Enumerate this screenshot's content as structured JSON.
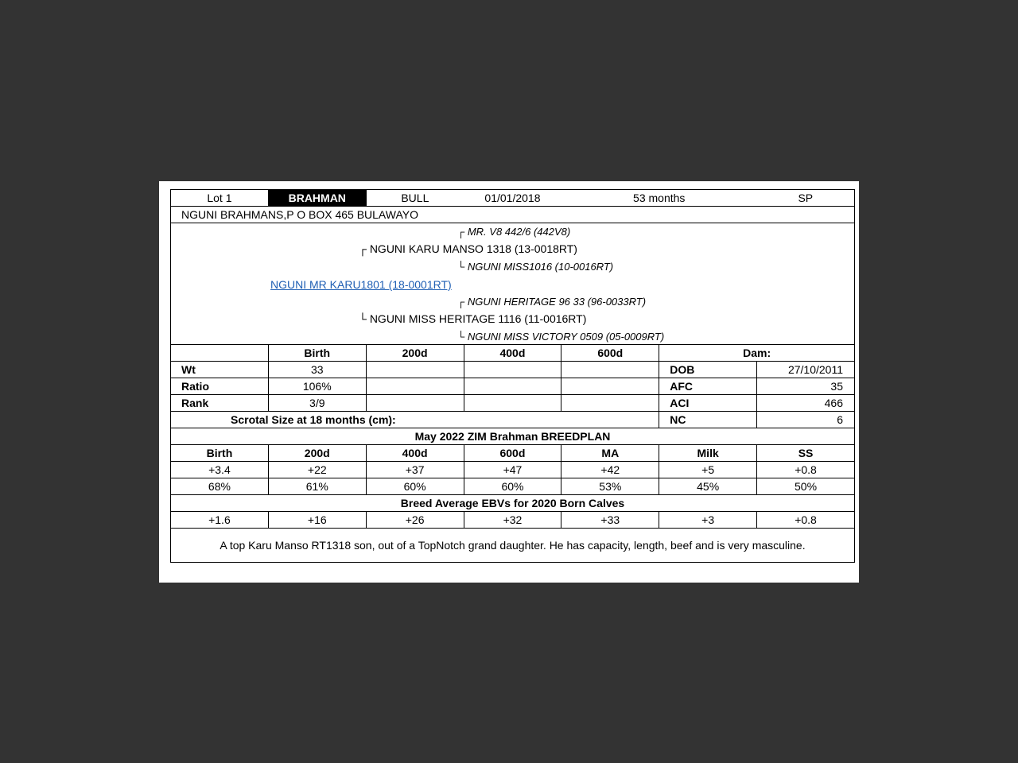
{
  "header": {
    "lot": "Lot 1",
    "breed": "BRAHMAN",
    "sex": "BULL",
    "dob": "01/01/2018",
    "age": "53 months",
    "status": "SP"
  },
  "breeder": "NGUNI BRAHMANS,P O BOX 465 BULAWAYO",
  "pedigree": {
    "sire_sire": "MR. V8 442/6 (442V8)",
    "sire": "NGUNI KARU MANSO 1318 (13-0018RT)",
    "sire_dam": "NGUNI MISS1016 (10-0016RT)",
    "animal": "NGUNI MR KARU1801 (18-0001RT)",
    "dam_sire": "NGUNI HERITAGE 96 33 (96-0033RT)",
    "dam": "NGUNI MISS HERITAGE 1116 (11-0016RT)",
    "dam_dam": "NGUNI MISS VICTORY 0509 (05-0009RT)",
    "top_glyph": "┌",
    "bottom_glyph": "└"
  },
  "performance": {
    "headers": [
      "Birth",
      "200d",
      "400d",
      "600d"
    ],
    "rows": [
      {
        "label": "Wt",
        "values": [
          "33",
          "",
          "",
          ""
        ]
      },
      {
        "label": "Ratio",
        "values": [
          "106%",
          "",
          "",
          ""
        ]
      },
      {
        "label": "Rank",
        "values": [
          "3/9",
          "",
          "",
          ""
        ]
      }
    ],
    "scrotal_label": "Scrotal Size at 18 months (cm):"
  },
  "dam_info": {
    "title": "Dam:",
    "rows": [
      {
        "label": "DOB",
        "value": "27/10/2011"
      },
      {
        "label": "AFC",
        "value": "35"
      },
      {
        "label": "ACI",
        "value": "466"
      },
      {
        "label": "NC",
        "value": "6"
      }
    ]
  },
  "breedplan": {
    "title": "May 2022 ZIM Brahman BREEDPLAN",
    "headers": [
      "Birth",
      "200d",
      "400d",
      "600d",
      "MA",
      "Milk",
      "SS"
    ],
    "ebvs": [
      "+3.4",
      "+22",
      "+37",
      "+47",
      "+42",
      "+5",
      "+0.8"
    ],
    "accuracy": [
      "68%",
      "61%",
      "60%",
      "60%",
      "53%",
      "45%",
      "50%"
    ],
    "avg_title": "Breed Average EBVs for 2020 Born Calves",
    "averages": [
      "+1.6",
      "+16",
      "+26",
      "+32",
      "+33",
      "+3",
      "+0.8"
    ]
  },
  "comment": "A top Karu Manso RT1318 son, out of a TopNotch grand daughter. He has capacity, length, beef and is very masculine."
}
